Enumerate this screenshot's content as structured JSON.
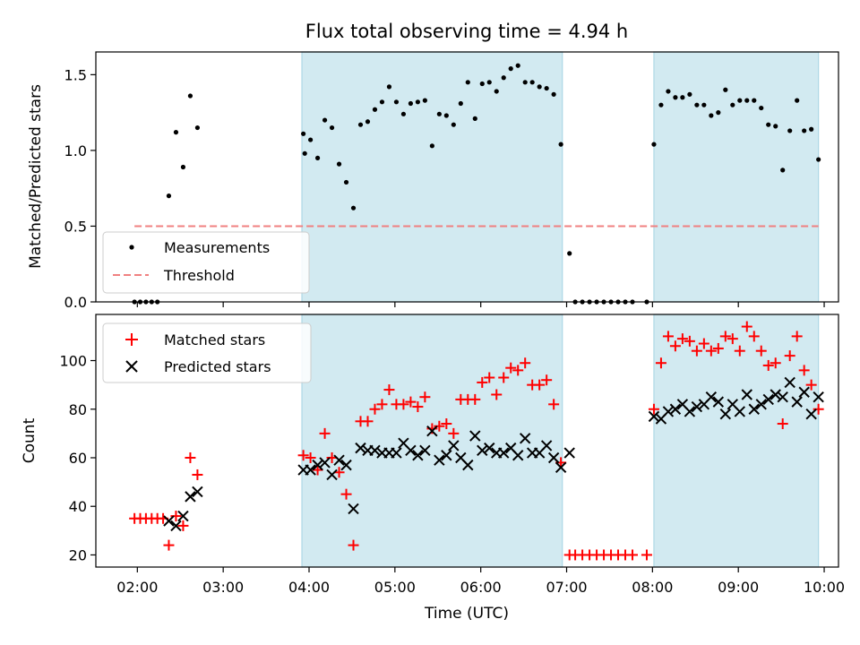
{
  "chart_data": [
    {
      "type": "scatter",
      "title": "Flux total observing time = 4.94 h",
      "xlabel": "",
      "ylabel": "Matched/Predicted stars",
      "xlim": [
        "01:31",
        "10:10"
      ],
      "ylim": [
        0,
        1.65
      ],
      "yticks": [
        "0.0",
        "0.5",
        "1.0",
        "1.5"
      ],
      "xticks": [
        "02:00",
        "03:00",
        "04:00",
        "05:00",
        "06:00",
        "07:00",
        "08:00",
        "09:00",
        "10:00"
      ],
      "xtick_labels_shown": false,
      "shaded_intervals": [
        [
          "03:55",
          "06:57"
        ],
        [
          "08:01",
          "09:56"
        ]
      ],
      "threshold": {
        "value": 0.5,
        "x_start": "01:58",
        "x_end": "09:56",
        "color": "#f08080",
        "style": "dashed"
      },
      "legend": {
        "position": "lower-left",
        "entries": [
          "Measurements",
          "Threshold"
        ]
      },
      "series": [
        {
          "name": "Measurements",
          "color": "#000000",
          "marker": "dot",
          "points": [
            [
              "01:58",
              0.0
            ],
            [
              "02:02",
              0.0
            ],
            [
              "02:06",
              0.0
            ],
            [
              "02:10",
              0.0
            ],
            [
              "02:14",
              0.0
            ],
            [
              "02:22",
              0.7
            ],
            [
              "02:27",
              1.12
            ],
            [
              "02:32",
              0.89
            ],
            [
              "02:37",
              1.36
            ],
            [
              "02:42",
              1.15
            ],
            [
              "03:56",
              1.11
            ],
            [
              "03:57",
              0.98
            ],
            [
              "04:01",
              1.07
            ],
            [
              "04:06",
              0.95
            ],
            [
              "04:11",
              1.2
            ],
            [
              "04:16",
              1.15
            ],
            [
              "04:21",
              0.91
            ],
            [
              "04:26",
              0.79
            ],
            [
              "04:31",
              0.62
            ],
            [
              "04:36",
              1.17
            ],
            [
              "04:41",
              1.19
            ],
            [
              "04:46",
              1.27
            ],
            [
              "04:51",
              1.32
            ],
            [
              "04:56",
              1.42
            ],
            [
              "05:01",
              1.32
            ],
            [
              "05:06",
              1.24
            ],
            [
              "05:11",
              1.31
            ],
            [
              "05:16",
              1.32
            ],
            [
              "05:21",
              1.33
            ],
            [
              "05:26",
              1.03
            ],
            [
              "05:31",
              1.24
            ],
            [
              "05:36",
              1.23
            ],
            [
              "05:41",
              1.17
            ],
            [
              "05:46",
              1.31
            ],
            [
              "05:51",
              1.45
            ],
            [
              "05:56",
              1.21
            ],
            [
              "06:01",
              1.44
            ],
            [
              "06:06",
              1.45
            ],
            [
              "06:11",
              1.39
            ],
            [
              "06:16",
              1.48
            ],
            [
              "06:21",
              1.54
            ],
            [
              "06:26",
              1.56
            ],
            [
              "06:31",
              1.45
            ],
            [
              "06:36",
              1.45
            ],
            [
              "06:41",
              1.42
            ],
            [
              "06:46",
              1.41
            ],
            [
              "06:51",
              1.37
            ],
            [
              "06:56",
              1.04
            ],
            [
              "07:02",
              0.32
            ],
            [
              "07:06",
              0.0
            ],
            [
              "07:11",
              0.0
            ],
            [
              "07:16",
              0.0
            ],
            [
              "07:21",
              0.0
            ],
            [
              "07:26",
              0.0
            ],
            [
              "07:31",
              0.0
            ],
            [
              "07:36",
              0.0
            ],
            [
              "07:41",
              0.0
            ],
            [
              "07:46",
              0.0
            ],
            [
              "07:56",
              0.0
            ],
            [
              "08:01",
              1.04
            ],
            [
              "08:06",
              1.3
            ],
            [
              "08:11",
              1.39
            ],
            [
              "08:16",
              1.35
            ],
            [
              "08:21",
              1.35
            ],
            [
              "08:26",
              1.37
            ],
            [
              "08:31",
              1.3
            ],
            [
              "08:36",
              1.3
            ],
            [
              "08:41",
              1.23
            ],
            [
              "08:46",
              1.25
            ],
            [
              "08:51",
              1.4
            ],
            [
              "08:56",
              1.3
            ],
            [
              "09:01",
              1.33
            ],
            [
              "09:06",
              1.33
            ],
            [
              "09:11",
              1.33
            ],
            [
              "09:16",
              1.28
            ],
            [
              "09:21",
              1.17
            ],
            [
              "09:26",
              1.16
            ],
            [
              "09:31",
              0.87
            ],
            [
              "09:36",
              1.13
            ],
            [
              "09:41",
              1.33
            ],
            [
              "09:46",
              1.13
            ],
            [
              "09:51",
              1.14
            ],
            [
              "09:56",
              0.94
            ]
          ]
        }
      ]
    },
    {
      "type": "scatter",
      "title": "",
      "xlabel": "Time (UTC)",
      "ylabel": "Count",
      "xlim": [
        "01:31",
        "10:10"
      ],
      "ylim": [
        15,
        119
      ],
      "yticks": [
        "20",
        "40",
        "60",
        "80",
        "100"
      ],
      "xticks": [
        "02:00",
        "03:00",
        "04:00",
        "05:00",
        "06:00",
        "07:00",
        "08:00",
        "09:00",
        "10:00"
      ],
      "shaded_intervals": [
        [
          "03:55",
          "06:57"
        ],
        [
          "08:01",
          "09:56"
        ]
      ],
      "legend": {
        "position": "upper-left",
        "entries": [
          "Matched stars",
          "Predicted stars"
        ]
      },
      "series": [
        {
          "name": "Matched stars",
          "color": "#ff0000",
          "marker": "plus",
          "points": [
            [
              "01:58",
              35
            ],
            [
              "02:02",
              35
            ],
            [
              "02:06",
              35
            ],
            [
              "02:10",
              35
            ],
            [
              "02:14",
              35
            ],
            [
              "02:18",
              35
            ],
            [
              "02:22",
              24
            ],
            [
              "02:27",
              36
            ],
            [
              "02:32",
              32
            ],
            [
              "02:37",
              60
            ],
            [
              "02:42",
              53
            ],
            [
              "03:56",
              61
            ],
            [
              "04:01",
              60
            ],
            [
              "04:06",
              55
            ],
            [
              "04:11",
              70
            ],
            [
              "04:16",
              60
            ],
            [
              "04:21",
              54
            ],
            [
              "04:26",
              45
            ],
            [
              "04:31",
              24
            ],
            [
              "04:36",
              75
            ],
            [
              "04:41",
              75
            ],
            [
              "04:46",
              80
            ],
            [
              "04:51",
              82
            ],
            [
              "04:56",
              88
            ],
            [
              "05:01",
              82
            ],
            [
              "05:06",
              82
            ],
            [
              "05:11",
              83
            ],
            [
              "05:16",
              81
            ],
            [
              "05:21",
              85
            ],
            [
              "05:26",
              72
            ],
            [
              "05:31",
              73
            ],
            [
              "05:36",
              74
            ],
            [
              "05:41",
              70
            ],
            [
              "05:46",
              84
            ],
            [
              "05:51",
              84
            ],
            [
              "05:56",
              84
            ],
            [
              "06:01",
              91
            ],
            [
              "06:06",
              93
            ],
            [
              "06:11",
              86
            ],
            [
              "06:16",
              93
            ],
            [
              "06:21",
              97
            ],
            [
              "06:26",
              96
            ],
            [
              "06:31",
              99
            ],
            [
              "06:36",
              90
            ],
            [
              "06:41",
              90
            ],
            [
              "06:46",
              92
            ],
            [
              "06:51",
              82
            ],
            [
              "06:56",
              58
            ],
            [
              "07:02",
              20
            ],
            [
              "07:06",
              20
            ],
            [
              "07:11",
              20
            ],
            [
              "07:16",
              20
            ],
            [
              "07:21",
              20
            ],
            [
              "07:26",
              20
            ],
            [
              "07:31",
              20
            ],
            [
              "07:36",
              20
            ],
            [
              "07:41",
              20
            ],
            [
              "07:46",
              20
            ],
            [
              "07:56",
              20
            ],
            [
              "08:01",
              80
            ],
            [
              "08:06",
              99
            ],
            [
              "08:11",
              110
            ],
            [
              "08:16",
              106
            ],
            [
              "08:21",
              109
            ],
            [
              "08:26",
              108
            ],
            [
              "08:31",
              104
            ],
            [
              "08:36",
              107
            ],
            [
              "08:41",
              104
            ],
            [
              "08:46",
              105
            ],
            [
              "08:51",
              110
            ],
            [
              "08:56",
              109
            ],
            [
              "09:01",
              104
            ],
            [
              "09:06",
              114
            ],
            [
              "09:11",
              110
            ],
            [
              "09:16",
              104
            ],
            [
              "09:21",
              98
            ],
            [
              "09:26",
              99
            ],
            [
              "09:31",
              74
            ],
            [
              "09:36",
              102
            ],
            [
              "09:41",
              110
            ],
            [
              "09:46",
              96
            ],
            [
              "09:51",
              90
            ],
            [
              "09:56",
              80
            ]
          ]
        },
        {
          "name": "Predicted stars",
          "color": "#000000",
          "marker": "x",
          "points": [
            [
              "02:22",
              34
            ],
            [
              "02:27",
              32
            ],
            [
              "02:32",
              36
            ],
            [
              "02:37",
              44
            ],
            [
              "02:42",
              46
            ],
            [
              "03:56",
              55
            ],
            [
              "04:01",
              55
            ],
            [
              "04:06",
              57
            ],
            [
              "04:11",
              58
            ],
            [
              "04:16",
              53
            ],
            [
              "04:21",
              59
            ],
            [
              "04:26",
              57
            ],
            [
              "04:31",
              39
            ],
            [
              "04:36",
              64
            ],
            [
              "04:41",
              63
            ],
            [
              "04:46",
              63
            ],
            [
              "04:51",
              62
            ],
            [
              "04:56",
              62
            ],
            [
              "05:01",
              62
            ],
            [
              "05:06",
              66
            ],
            [
              "05:11",
              63
            ],
            [
              "05:16",
              61
            ],
            [
              "05:21",
              63
            ],
            [
              "05:26",
              71
            ],
            [
              "05:31",
              59
            ],
            [
              "05:36",
              61
            ],
            [
              "05:41",
              65
            ],
            [
              "05:46",
              60
            ],
            [
              "05:51",
              57
            ],
            [
              "05:56",
              69
            ],
            [
              "06:01",
              63
            ],
            [
              "06:06",
              64
            ],
            [
              "06:11",
              62
            ],
            [
              "06:16",
              62
            ],
            [
              "06:21",
              64
            ],
            [
              "06:26",
              61
            ],
            [
              "06:31",
              68
            ],
            [
              "06:36",
              62
            ],
            [
              "06:41",
              62
            ],
            [
              "06:46",
              65
            ],
            [
              "06:51",
              60
            ],
            [
              "06:56",
              56
            ],
            [
              "07:02",
              62
            ],
            [
              "08:01",
              77
            ],
            [
              "08:06",
              76
            ],
            [
              "08:11",
              79
            ],
            [
              "08:16",
              80
            ],
            [
              "08:21",
              82
            ],
            [
              "08:26",
              79
            ],
            [
              "08:31",
              81
            ],
            [
              "08:36",
              82
            ],
            [
              "08:41",
              85
            ],
            [
              "08:46",
              83
            ],
            [
              "08:51",
              78
            ],
            [
              "08:56",
              82
            ],
            [
              "09:01",
              79
            ],
            [
              "09:06",
              86
            ],
            [
              "09:11",
              80
            ],
            [
              "09:16",
              82
            ],
            [
              "09:21",
              84
            ],
            [
              "09:26",
              86
            ],
            [
              "09:31",
              85
            ],
            [
              "09:36",
              91
            ],
            [
              "09:41",
              83
            ],
            [
              "09:46",
              87
            ],
            [
              "09:51",
              78
            ],
            [
              "09:56",
              85
            ]
          ]
        }
      ]
    }
  ],
  "colors": {
    "shade": "#add8e6",
    "threshold": "#f08080",
    "matched": "#ff0000",
    "predicted": "#000000",
    "measurements": "#000000"
  }
}
